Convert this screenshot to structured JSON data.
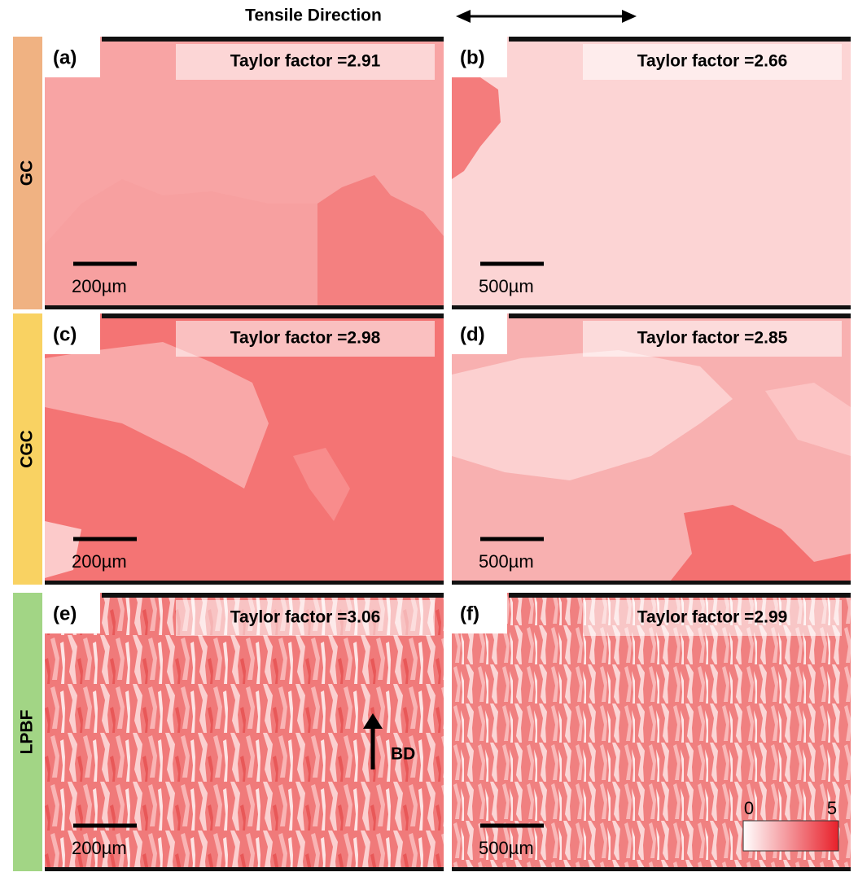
{
  "header": {
    "title": "Tensile Direction"
  },
  "rows": [
    {
      "label": "GC"
    },
    {
      "label": "CGC"
    },
    {
      "label": "LPBF"
    }
  ],
  "panels": [
    {
      "label": "(a)",
      "annotation": "Taylor factor =2.91",
      "scale_bar": "200µm"
    },
    {
      "label": "(b)",
      "annotation": "Taylor factor =2.66",
      "scale_bar": "500µm"
    },
    {
      "label": "(c)",
      "annotation": "Taylor factor =2.98",
      "scale_bar": "200µm"
    },
    {
      "label": "(d)",
      "annotation": "Taylor factor =2.85",
      "scale_bar": "500µm"
    },
    {
      "label": "(e)",
      "annotation": "Taylor factor =3.06",
      "scale_bar": "200µm"
    },
    {
      "label": "(f)",
      "annotation": "Taylor factor =2.99",
      "scale_bar": "500µm"
    }
  ],
  "bd_arrow": {
    "label": "BD"
  },
  "colorbar": {
    "min_label": "0",
    "max_label": "5"
  }
}
